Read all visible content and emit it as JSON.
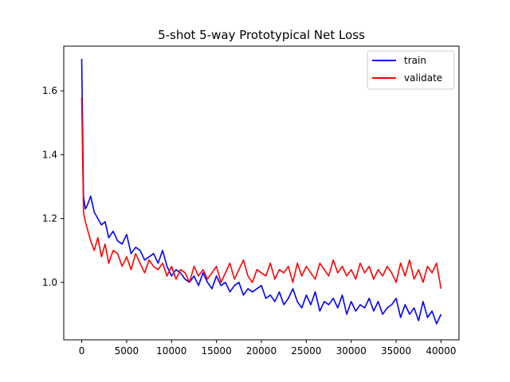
{
  "chart_data": {
    "type": "line",
    "title": "5-shot 5-way Prototypical Net Loss",
    "xlabel": "",
    "ylabel": "",
    "xlim": [
      -2000,
      42000
    ],
    "ylim": [
      0.82,
      1.74
    ],
    "x_ticks": [
      0,
      5000,
      10000,
      15000,
      20000,
      25000,
      30000,
      35000,
      40000
    ],
    "x_tick_labels": [
      "0",
      "5000",
      "10000",
      "15000",
      "20000",
      "25000",
      "30000",
      "35000",
      "40000"
    ],
    "y_ticks": [
      1.0,
      1.2,
      1.4,
      1.6
    ],
    "y_tick_labels": [
      "1.0",
      "1.2",
      "1.4",
      "1.6"
    ],
    "grid": false,
    "legend_position": "upper right",
    "series": [
      {
        "name": "train",
        "color": "#0000ff",
        "x": [
          0,
          200,
          400,
          600,
          1000,
          1400,
          1800,
          2200,
          2600,
          3000,
          3500,
          4000,
          4500,
          5000,
          5500,
          6000,
          6500,
          7000,
          7500,
          8000,
          8500,
          9000,
          9500,
          10000,
          10500,
          11000,
          11500,
          12000,
          12500,
          13000,
          13500,
          14000,
          14500,
          15000,
          15500,
          16000,
          16500,
          17000,
          17500,
          18000,
          18500,
          19000,
          19500,
          20000,
          20500,
          21000,
          21500,
          22000,
          22500,
          23000,
          23500,
          24000,
          24500,
          25000,
          25500,
          26000,
          26500,
          27000,
          27500,
          28000,
          28500,
          29000,
          29500,
          30000,
          30500,
          31000,
          31500,
          32000,
          32500,
          33000,
          33500,
          34000,
          34500,
          35000,
          35500,
          36000,
          36500,
          37000,
          37500,
          38000,
          38500,
          39000,
          39500,
          40000
        ],
        "y": [
          1.7,
          1.27,
          1.23,
          1.24,
          1.27,
          1.22,
          1.2,
          1.18,
          1.19,
          1.14,
          1.16,
          1.13,
          1.12,
          1.15,
          1.09,
          1.11,
          1.1,
          1.07,
          1.08,
          1.09,
          1.06,
          1.1,
          1.05,
          1.02,
          1.04,
          1.03,
          1.01,
          1.0,
          1.02,
          0.99,
          1.03,
          1.0,
          0.98,
          1.02,
          0.99,
          1.0,
          0.97,
          0.99,
          1.0,
          0.96,
          0.98,
          0.97,
          0.98,
          0.99,
          0.95,
          0.96,
          0.94,
          0.97,
          0.93,
          0.95,
          0.98,
          0.94,
          0.92,
          0.96,
          0.93,
          0.97,
          0.91,
          0.94,
          0.93,
          0.95,
          0.92,
          0.96,
          0.9,
          0.94,
          0.91,
          0.93,
          0.92,
          0.95,
          0.91,
          0.94,
          0.9,
          0.92,
          0.93,
          0.95,
          0.89,
          0.93,
          0.9,
          0.92,
          0.88,
          0.94,
          0.89,
          0.91,
          0.87,
          0.9
        ]
      },
      {
        "name": "validate",
        "color": "#ff0000",
        "x": [
          0,
          200,
          400,
          600,
          1000,
          1400,
          1800,
          2200,
          2600,
          3000,
          3500,
          4000,
          4500,
          5000,
          5500,
          6000,
          6500,
          7000,
          7500,
          8000,
          8500,
          9000,
          9500,
          10000,
          10500,
          11000,
          11500,
          12000,
          12500,
          13000,
          13500,
          14000,
          14500,
          15000,
          15500,
          16000,
          16500,
          17000,
          17500,
          18000,
          18500,
          19000,
          19500,
          20000,
          20500,
          21000,
          21500,
          22000,
          22500,
          23000,
          23500,
          24000,
          24500,
          25000,
          25500,
          26000,
          26500,
          27000,
          27500,
          28000,
          28500,
          29000,
          29500,
          30000,
          30500,
          31000,
          31500,
          32000,
          32500,
          33000,
          33500,
          34000,
          34500,
          35000,
          35500,
          36000,
          36500,
          37000,
          37500,
          38000,
          38500,
          39000,
          39500,
          40000
        ],
        "y": [
          1.58,
          1.22,
          1.19,
          1.17,
          1.13,
          1.1,
          1.14,
          1.08,
          1.12,
          1.06,
          1.1,
          1.09,
          1.05,
          1.08,
          1.04,
          1.09,
          1.06,
          1.03,
          1.07,
          1.05,
          1.04,
          1.06,
          1.02,
          1.05,
          1.01,
          1.04,
          1.03,
          1.0,
          1.05,
          1.02,
          1.04,
          1.01,
          1.03,
          1.05,
          1.0,
          1.03,
          1.06,
          1.01,
          1.04,
          1.07,
          1.02,
          1.0,
          1.04,
          1.03,
          1.02,
          1.06,
          1.01,
          1.04,
          1.03,
          1.05,
          1.0,
          1.06,
          1.02,
          1.05,
          1.03,
          1.01,
          1.06,
          1.04,
          1.02,
          1.07,
          1.03,
          1.05,
          1.02,
          1.04,
          1.01,
          1.06,
          1.03,
          1.05,
          1.01,
          1.04,
          1.02,
          1.05,
          1.03,
          1.0,
          1.06,
          1.02,
          1.07,
          1.01,
          1.04,
          1.0,
          1.05,
          1.03,
          1.06,
          0.98
        ]
      }
    ]
  }
}
